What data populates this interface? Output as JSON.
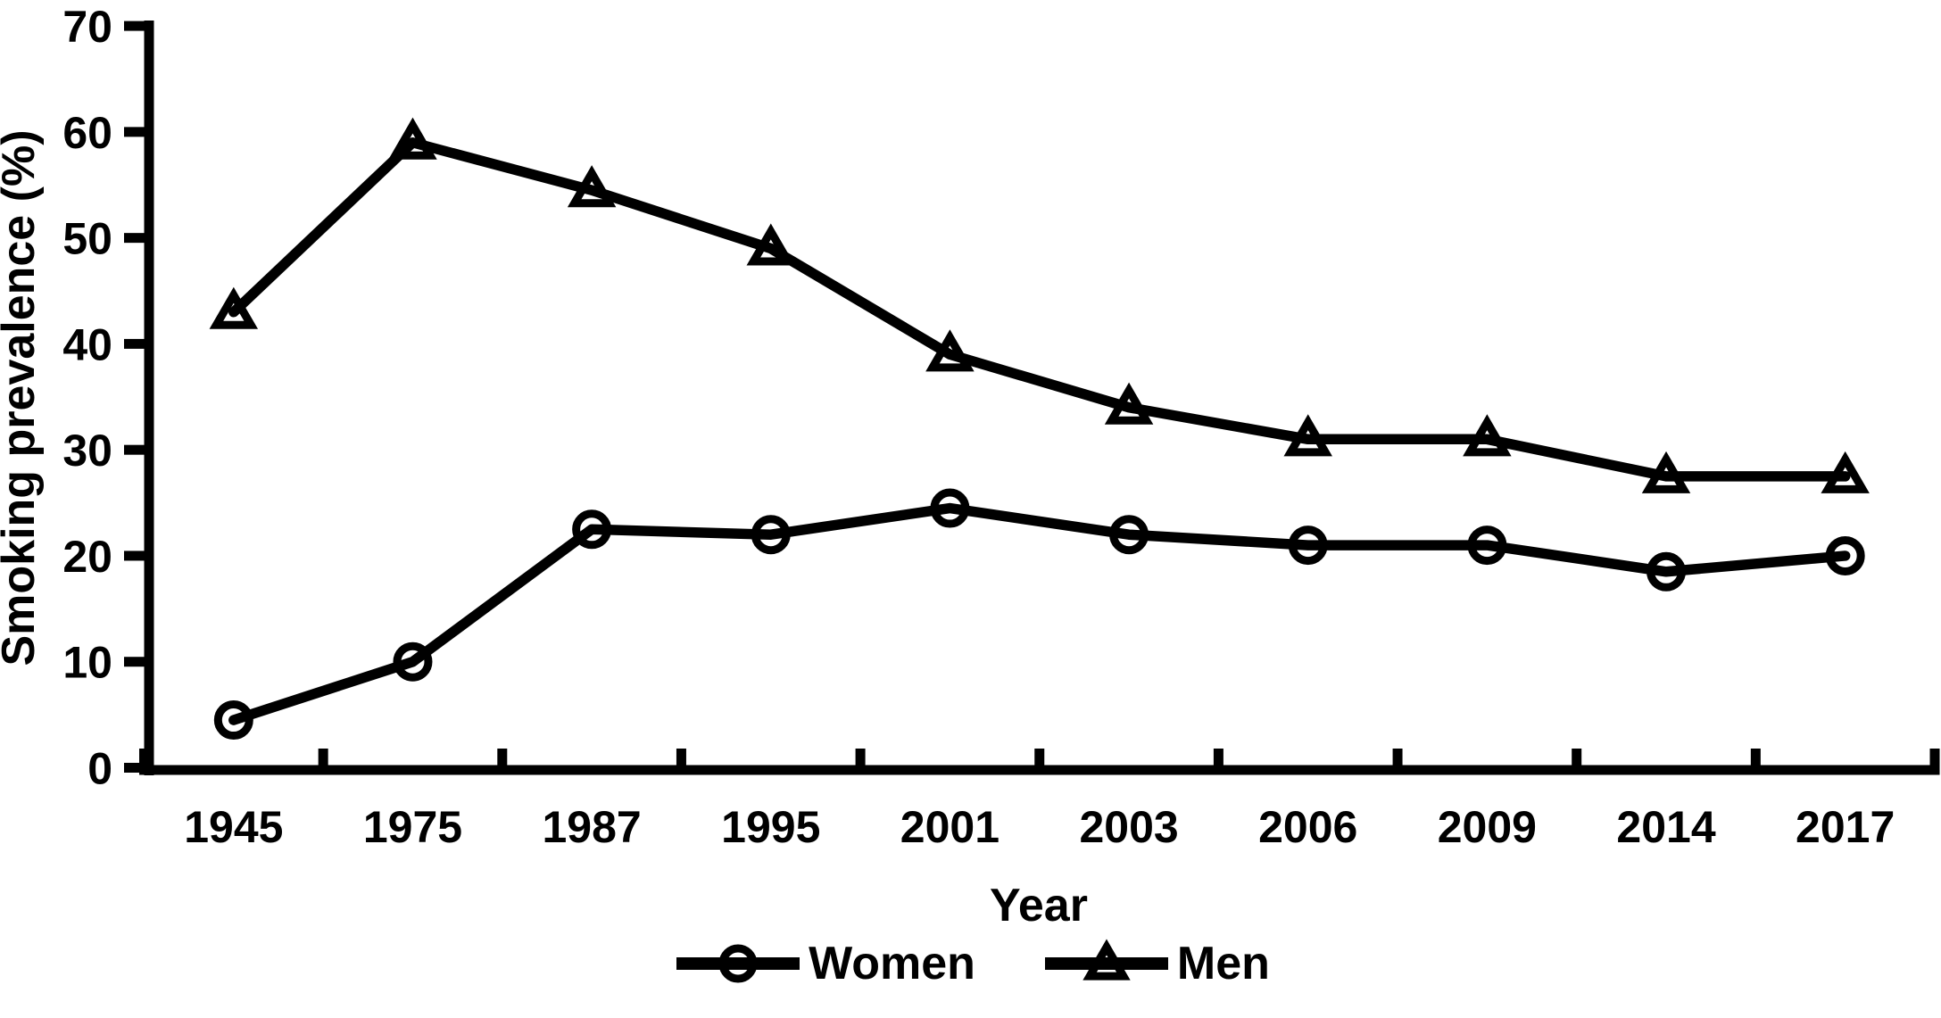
{
  "figure": {
    "background_color": "#ffffff",
    "foreground_color": "#000000"
  },
  "chart_data": {
    "type": "line",
    "title": "",
    "xlabel": "Year",
    "ylabel": "Smoking prevalence (%)",
    "categories": [
      "1945",
      "1975",
      "1987",
      "1995",
      "2001",
      "2003",
      "2006",
      "2009",
      "2014",
      "2017"
    ],
    "series": [
      {
        "name": "Women",
        "marker": "circle",
        "color": "#000000",
        "values": [
          4.5,
          10,
          22.5,
          22,
          24.5,
          22,
          21,
          21,
          18.5,
          20
        ]
      },
      {
        "name": "Men",
        "marker": "triangle",
        "color": "#000000",
        "values": [
          43,
          59,
          54.5,
          49,
          39,
          34,
          31,
          31,
          27.5,
          27.5
        ]
      }
    ],
    "ylim": [
      0,
      70
    ],
    "yticks": [
      "0",
      "10",
      "20",
      "30",
      "40",
      "50",
      "60",
      "70"
    ],
    "grid": false,
    "legend_position": "bottom"
  }
}
